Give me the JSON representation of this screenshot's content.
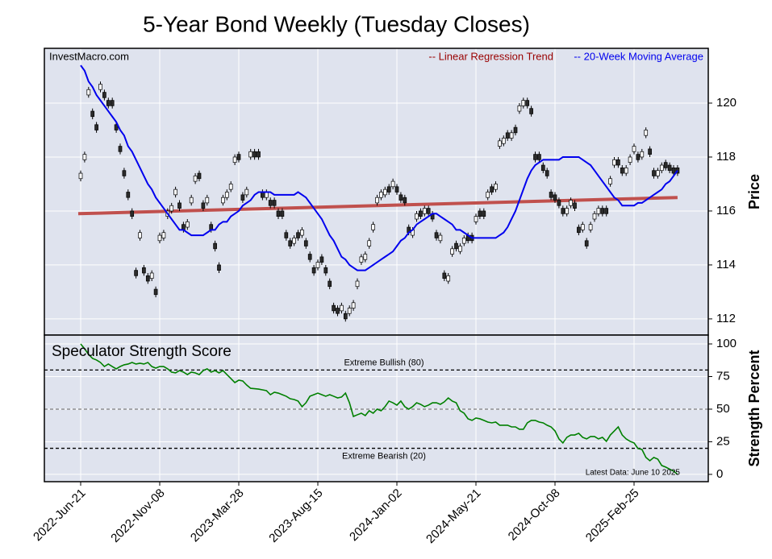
{
  "chart_data": [
    {
      "type": "candlestick",
      "title": "5-Year Bond Weekly (Tuesday Closes)",
      "source": "InvestMacro.com",
      "ylabel": "Price",
      "open": [
        117.2,
        117.9,
        120.3,
        119.7,
        119.2,
        120.5,
        120.4,
        120.1,
        120.1,
        119.2,
        118.4,
        117.5,
        116.7,
        116.0,
        113.8,
        115.0,
        113.9,
        113.6,
        113.5,
        113.1,
        114.9,
        115.0,
        115.8,
        116.0,
        116.6,
        116.3,
        115.5,
        115.4,
        116.3,
        117.1,
        117.4,
        116.3,
        116.3,
        115.5,
        114.8,
        114.0,
        116.3,
        116.5,
        116.8,
        117.8,
        118.1,
        116.6,
        116.6,
        118.0,
        118.2,
        118.2,
        116.7,
        116.5,
        116.4,
        116.4,
        116.0,
        116.0,
        115.2,
        114.9,
        114.8,
        115.2,
        115.1,
        114.9,
        114.4,
        113.9,
        113.9,
        114.3,
        113.9,
        113.4,
        112.5,
        112.4,
        112.3,
        112.2,
        112.2,
        112.4,
        113.2,
        114.1,
        114.2,
        114.7,
        115.3,
        116.3,
        116.5,
        116.6,
        116.9,
        116.9,
        116.9,
        116.6,
        116.5,
        115.4,
        115.1,
        115.7,
        116.0,
        115.9,
        116.1,
        115.9,
        115.2,
        114.9,
        113.7,
        113.4,
        114.4,
        114.8,
        114.5,
        114.8,
        115.1,
        115.1,
        115.6,
        116.0,
        116.0,
        116.5,
        116.9,
        116.8,
        118.4,
        118.5,
        118.9,
        118.7,
        119.1,
        119.7,
        119.9,
        120.1,
        119.8,
        118.1,
        118.1,
        117.7,
        117.5,
        116.7,
        116.6,
        116.4,
        116.1,
        115.9,
        116.2,
        116.3,
        115.4,
        115.3,
        114.9,
        115.3,
        115.7,
        115.9,
        116.1,
        116.1,
        117.0,
        117.7,
        117.9,
        117.6,
        117.4,
        117.8,
        118.2,
        118.1,
        118.0,
        118.8,
        118.3,
        117.5,
        117.3,
        117.5,
        117.8,
        117.7,
        117.6,
        117.6
      ],
      "high": [
        117.5,
        118.2,
        120.6,
        119.8,
        119.3,
        120.8,
        120.5,
        120.2,
        120.2,
        119.3,
        118.5,
        117.6,
        116.8,
        116.1,
        113.9,
        115.3,
        114.0,
        113.7,
        113.8,
        113.2,
        115.2,
        115.3,
        116.1,
        116.3,
        116.9,
        116.4,
        115.6,
        115.7,
        116.6,
        117.4,
        117.5,
        116.4,
        116.6,
        115.6,
        114.9,
        114.1,
        116.6,
        116.8,
        117.1,
        118.1,
        118.2,
        116.7,
        116.9,
        118.3,
        118.3,
        118.3,
        116.8,
        116.8,
        116.5,
        116.5,
        116.1,
        116.1,
        115.3,
        115.0,
        115.1,
        115.3,
        115.4,
        115.0,
        114.5,
        114.0,
        114.2,
        114.4,
        114.0,
        113.5,
        112.6,
        112.5,
        112.6,
        112.3,
        112.5,
        112.7,
        113.5,
        114.4,
        114.5,
        115.0,
        115.6,
        116.6,
        116.8,
        116.9,
        117.0,
        117.2,
        117.0,
        116.7,
        116.6,
        115.5,
        115.4,
        116.0,
        116.1,
        116.2,
        116.2,
        116.0,
        115.3,
        115.2,
        113.8,
        113.7,
        114.7,
        114.9,
        114.8,
        115.1,
        115.2,
        115.2,
        115.9,
        116.1,
        116.1,
        116.8,
        117.0,
        117.1,
        118.7,
        118.8,
        119.0,
        119.0,
        119.2,
        120.0,
        120.2,
        120.2,
        119.9,
        118.2,
        118.2,
        117.8,
        117.6,
        116.8,
        116.7,
        116.5,
        116.2,
        116.2,
        116.5,
        116.4,
        115.5,
        115.6,
        115.0,
        115.6,
        116.0,
        116.2,
        116.2,
        116.2,
        117.3,
        118.0,
        118.0,
        117.7,
        117.7,
        118.1,
        118.5,
        118.2,
        118.3,
        119.1,
        118.4,
        117.6,
        117.6,
        117.8,
        117.9,
        117.8,
        117.7,
        117.7
      ],
      "low": [
        117.1,
        117.8,
        120.2,
        119.4,
        118.9,
        120.4,
        120.1,
        119.8,
        119.8,
        118.9,
        118.1,
        117.2,
        116.4,
        115.7,
        113.5,
        114.9,
        113.6,
        113.3,
        113.4,
        112.8,
        114.8,
        114.9,
        115.7,
        115.9,
        116.5,
        116.0,
        115.2,
        115.3,
        116.2,
        117.0,
        117.1,
        116.0,
        116.2,
        115.2,
        114.5,
        113.7,
        116.2,
        116.4,
        116.7,
        117.7,
        117.8,
        116.3,
        116.5,
        117.9,
        117.9,
        117.9,
        116.4,
        116.4,
        116.1,
        116.1,
        115.7,
        115.7,
        114.9,
        114.6,
        114.7,
        114.9,
        115.0,
        114.6,
        114.1,
        113.6,
        113.8,
        114.0,
        113.6,
        113.1,
        112.2,
        112.1,
        112.2,
        111.9,
        112.1,
        112.3,
        113.1,
        114.0,
        114.1,
        114.6,
        115.2,
        116.2,
        116.4,
        116.5,
        116.6,
        116.8,
        116.6,
        116.3,
        116.2,
        115.1,
        115.0,
        115.6,
        115.7,
        115.8,
        115.8,
        115.6,
        114.9,
        114.8,
        113.4,
        113.3,
        114.3,
        114.5,
        114.4,
        114.7,
        114.8,
        114.8,
        115.5,
        115.7,
        115.7,
        116.4,
        116.6,
        116.7,
        118.3,
        118.4,
        118.6,
        118.6,
        118.8,
        119.6,
        119.8,
        119.8,
        119.5,
        117.8,
        117.8,
        117.4,
        117.2,
        116.4,
        116.3,
        116.1,
        115.8,
        115.8,
        116.1,
        116.0,
        115.1,
        115.2,
        114.6,
        115.2,
        115.6,
        115.8,
        115.8,
        115.8,
        116.9,
        117.6,
        117.6,
        117.3,
        117.3,
        117.7,
        118.1,
        117.8,
        117.9,
        118.7,
        118.0,
        117.2,
        117.2,
        117.4,
        117.5,
        117.4,
        117.3,
        117.3
      ],
      "close": [
        117.4,
        118.1,
        120.5,
        119.5,
        119.0,
        120.7,
        120.2,
        119.9,
        119.9,
        119.0,
        118.2,
        117.3,
        116.5,
        115.8,
        113.6,
        115.2,
        113.7,
        113.4,
        113.7,
        112.9,
        115.1,
        115.2,
        116.0,
        116.2,
        116.8,
        116.1,
        115.3,
        115.6,
        116.5,
        117.3,
        117.2,
        116.1,
        116.5,
        115.3,
        114.6,
        113.8,
        116.5,
        116.7,
        117.0,
        118.0,
        117.9,
        116.4,
        116.8,
        118.2,
        118.0,
        118.0,
        116.5,
        116.7,
        116.2,
        116.2,
        115.8,
        115.8,
        115.0,
        114.7,
        115.0,
        115.0,
        115.3,
        114.7,
        114.2,
        113.7,
        114.1,
        114.1,
        113.7,
        113.2,
        112.3,
        112.2,
        112.5,
        112.0,
        112.4,
        112.6,
        113.4,
        114.3,
        114.4,
        114.9,
        115.5,
        116.5,
        116.7,
        116.8,
        116.7,
        117.1,
        116.7,
        116.4,
        116.3,
        115.2,
        115.3,
        115.9,
        115.8,
        116.1,
        115.9,
        115.7,
        115.0,
        115.1,
        113.5,
        113.6,
        114.6,
        114.6,
        114.7,
        115.0,
        114.9,
        114.9,
        115.8,
        115.8,
        115.8,
        116.7,
        116.7,
        117.0,
        118.6,
        118.7,
        118.7,
        118.9,
        118.9,
        119.9,
        120.1,
        119.9,
        119.6,
        117.9,
        117.9,
        117.5,
        117.3,
        116.5,
        116.4,
        116.2,
        115.9,
        116.1,
        116.4,
        116.1,
        115.2,
        115.5,
        114.7,
        115.5,
        115.9,
        116.1,
        115.9,
        115.9,
        117.2,
        117.9,
        117.7,
        117.4,
        117.6,
        118.0,
        118.4,
        117.9,
        118.2,
        119.0,
        118.1,
        117.3,
        117.5,
        117.7,
        117.6,
        117.5,
        117.4,
        117.4
      ],
      "candle_colors": {
        "up": "#ffffff",
        "down": "#2b2b2b"
      },
      "series": [
        {
          "name": "-- 20-Week Moving Average",
          "color": "#0000ee",
          "values": [
            121.4,
            121.2,
            120.8,
            120.6,
            120.3,
            120.1,
            119.9,
            119.7,
            119.5,
            119.3,
            119.0,
            118.8,
            118.4,
            118.2,
            117.9,
            117.6,
            117.3,
            117.0,
            116.8,
            116.5,
            116.3,
            116.1,
            115.9,
            115.7,
            115.5,
            115.3,
            115.3,
            115.2,
            115.1,
            115.1,
            115.1,
            115.1,
            115.2,
            115.3,
            115.3,
            115.5,
            115.6,
            115.6,
            115.8,
            115.9,
            116.0,
            116.2,
            116.3,
            116.4,
            116.6,
            116.7,
            116.7,
            116.7,
            116.7,
            116.6,
            116.6,
            116.6,
            116.6,
            116.6,
            116.6,
            116.7,
            116.6,
            116.5,
            116.3,
            116.1,
            115.9,
            115.7,
            115.4,
            115.1,
            114.9,
            114.6,
            114.3,
            114.2,
            114.0,
            113.9,
            113.8,
            113.8,
            113.8,
            113.9,
            114.0,
            114.1,
            114.2,
            114.3,
            114.4,
            114.5,
            114.7,
            114.9,
            115.0,
            115.2,
            115.3,
            115.5,
            115.6,
            115.7,
            115.8,
            115.9,
            115.9,
            115.8,
            115.7,
            115.6,
            115.5,
            115.3,
            115.3,
            115.2,
            115.1,
            115.0,
            115.0,
            115.0,
            115.0,
            115.0,
            115.0,
            115.0,
            115.1,
            115.2,
            115.4,
            115.7,
            116.0,
            116.4,
            116.8,
            117.2,
            117.5,
            117.7,
            117.8,
            117.9,
            117.9,
            117.9,
            117.9,
            117.9,
            118.0,
            118.0,
            118.0,
            118.0,
            118.0,
            117.9,
            117.8,
            117.7,
            117.5,
            117.3,
            117.1,
            116.9,
            116.7,
            116.5,
            116.4,
            116.2,
            116.2,
            116.2,
            116.2,
            116.3,
            116.3,
            116.4,
            116.5,
            116.6,
            116.7,
            116.8,
            117.0,
            117.1,
            117.3,
            117.5
          ]
        }
      ],
      "trend": {
        "name": "-- Linear Regression Trend",
        "color": "#c0504d",
        "label_color": "#990000",
        "start": 115.9,
        "end": 116.5
      },
      "ylim": [
        111.4,
        122.03
      ],
      "yticks": [
        112,
        114,
        116,
        118,
        120
      ],
      "grid": true
    },
    {
      "type": "line",
      "title": "Speculator Strength Score",
      "ylabel": "Strength Percent",
      "categories": [
        "2022-Jun-21",
        null,
        null,
        null,
        null,
        null,
        null,
        null,
        null,
        null,
        null,
        null,
        null,
        null,
        null,
        null,
        null,
        null,
        null,
        null,
        "2022-Nov-08",
        null,
        null,
        null,
        null,
        null,
        null,
        null,
        null,
        null,
        null,
        null,
        null,
        null,
        null,
        null,
        null,
        null,
        null,
        null,
        "2023-Mar-28",
        null,
        null,
        null,
        null,
        null,
        null,
        null,
        null,
        null,
        null,
        null,
        null,
        null,
        null,
        null,
        null,
        null,
        null,
        null,
        "2023-Aug-15",
        null,
        null,
        null,
        null,
        null,
        null,
        null,
        null,
        null,
        null,
        null,
        null,
        null,
        null,
        null,
        null,
        null,
        null,
        null,
        "2024-Jan-02",
        null,
        null,
        null,
        null,
        null,
        null,
        null,
        null,
        null,
        null,
        null,
        null,
        null,
        null,
        null,
        null,
        null,
        null,
        null,
        "2024-May-21",
        null,
        null,
        null,
        null,
        null,
        null,
        null,
        null,
        null,
        null,
        null,
        null,
        null,
        null,
        null,
        null,
        null,
        null,
        null,
        "2024-Oct-08",
        null,
        null,
        null,
        null,
        null,
        null,
        null,
        null,
        null,
        null,
        null,
        null,
        null,
        null,
        null,
        null,
        null,
        null,
        null,
        "2025-Feb-25",
        null,
        null,
        null,
        null,
        null,
        null,
        null,
        null,
        null,
        null,
        null
      ],
      "values": [
        100,
        96.3,
        92,
        88.9,
        87.7,
        85.8,
        82.7,
        84.6,
        82.7,
        80.9,
        82.7,
        84,
        84.6,
        85.8,
        84.6,
        85.2,
        84.6,
        85.8,
        82.7,
        81.5,
        82.7,
        82.7,
        80.9,
        78.4,
        77.8,
        79.6,
        78.4,
        76.5,
        78.4,
        77.8,
        76.5,
        79.6,
        80.9,
        78.4,
        79.6,
        77.8,
        79.6,
        76.5,
        73.5,
        70.4,
        72.2,
        71.6,
        68.5,
        66,
        65.7,
        65.4,
        64.8,
        64.2,
        61.1,
        63,
        62.3,
        61.1,
        59.9,
        58,
        57.4,
        56.2,
        51.9,
        54.9,
        59.9,
        61.1,
        62.3,
        61.1,
        59.9,
        61.1,
        59.9,
        58.6,
        59.3,
        62.3,
        54.9,
        44.4,
        45.7,
        46.9,
        45.1,
        48.8,
        46.9,
        50,
        48.8,
        51.9,
        56.2,
        54.9,
        53.1,
        56.2,
        51.9,
        50,
        52,
        54.9,
        53.7,
        51.9,
        53.1,
        54.9,
        54.9,
        53.7,
        55.6,
        58.6,
        56.2,
        54.9,
        48.8,
        46.9,
        42.6,
        41.4,
        43.2,
        42.6,
        41.4,
        40.1,
        39.5,
        40.1,
        37.7,
        37.7,
        37.7,
        36.4,
        36.4,
        34.6,
        34.6,
        39.5,
        41.4,
        41.4,
        40.1,
        39.5,
        37.7,
        36.4,
        33.3,
        27.2,
        24.1,
        28.4,
        30.2,
        30.2,
        31.5,
        28.4,
        27.2,
        29,
        29,
        27.2,
        28.4,
        25.3,
        30.2,
        33.3,
        36.4,
        30.2,
        27.2,
        25.3,
        24.1,
        19.8,
        19.1,
        13,
        10.5,
        13,
        11.7,
        6.8,
        5.6,
        4,
        2.5,
        0
      ],
      "color": "#008000",
      "ylim": [
        -5.6,
        106.8
      ],
      "yticks": [
        0,
        25,
        50,
        75,
        100
      ],
      "reference_lines": [
        {
          "value": 80,
          "label": "Extreme Bullish (80)",
          "color": "#000000"
        },
        {
          "value": 50,
          "color": "#808080"
        },
        {
          "value": 20,
          "label": "Extreme Bearish (20)",
          "color": "#000000"
        }
      ],
      "note": "Latest Data: June 10 2025",
      "grid": true
    }
  ]
}
